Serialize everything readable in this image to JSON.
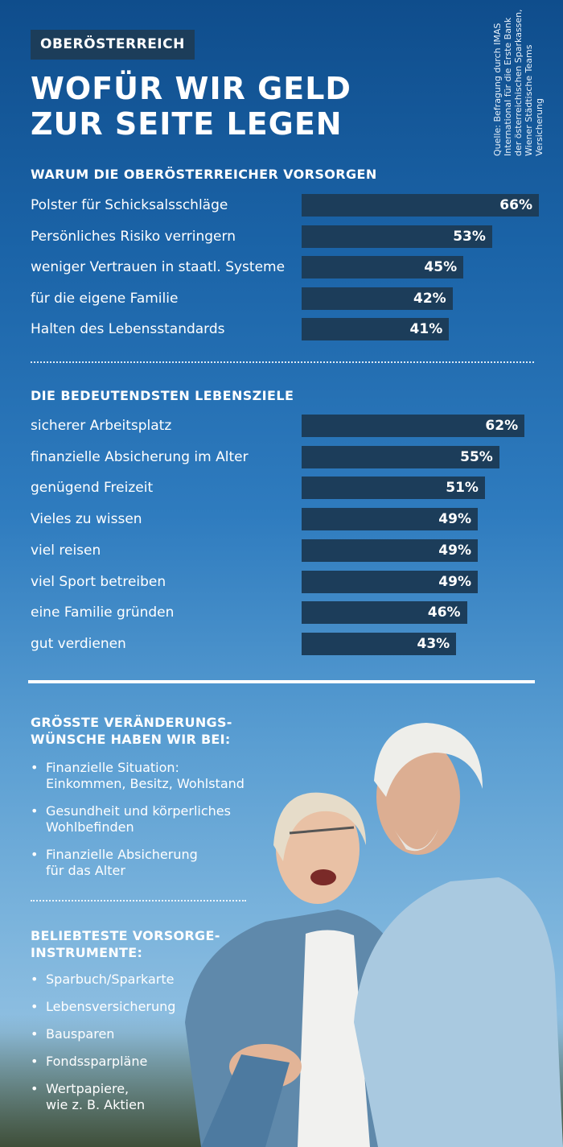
{
  "tag": "OBERÖSTERREICH",
  "headline": [
    "WOFÜR WIR GELD",
    "ZUR SEITE LEGEN"
  ],
  "source_lines": [
    "Quelle: Befragung durch IMAS",
    "International für die Erste Bank",
    "der österreichischen Sparkassen,",
    "Wiener Städtische Teams",
    "Versicherung"
  ],
  "chart_data": [
    {
      "type": "bar",
      "title": "WARUM DIE OBERÖSTERREICHER VORSORGEN",
      "categories": [
        "Polster für Schicksalsschläge",
        "Persönliches Risiko verringern",
        "weniger Vertrauen in staatl. Systeme",
        "für die eigene Familie",
        "Halten des Lebensstandards"
      ],
      "values": [
        66,
        53,
        45,
        42,
        41
      ],
      "labels": [
        "66%",
        "53%",
        "45%",
        "42%",
        "41%"
      ]
    },
    {
      "type": "bar",
      "title": "DIE BEDEUTENDSTEN LEBENSZIELE",
      "categories": [
        "sicherer Arbeitsplatz",
        "finanzielle Absicherung im Alter",
        "genügend Freizeit",
        "Vieles zu wissen",
        "viel reisen",
        "viel Sport betreiben",
        "eine Familie gründen",
        "gut verdienen"
      ],
      "values": [
        62,
        55,
        51,
        49,
        49,
        49,
        46,
        43
      ],
      "labels": [
        "62%",
        "55%",
        "51%",
        "49%",
        "49%",
        "49%",
        "46%",
        "43%"
      ]
    }
  ],
  "changes": {
    "title": [
      "GRÖSSTE VERÄNDERUNGS-",
      "WÜNSCHE HABEN WIR BEI:"
    ],
    "items": [
      [
        "Finanzielle Situation:",
        "Einkommen, Besitz, Wohlstand"
      ],
      [
        "Gesundheit und körperliches",
        "Wohlbefinden"
      ],
      [
        "Finanzielle Absicherung",
        "für das Alter"
      ]
    ]
  },
  "instruments": {
    "title": [
      "BELIEBTESTE VORSORGE-",
      "INSTRUMENTE:"
    ],
    "items": [
      [
        "Sparbuch/Sparkarte"
      ],
      [
        "Lebensversicherung"
      ],
      [
        "Bausparen"
      ],
      [
        "Fondssparpläne"
      ],
      [
        "Wertpapiere,",
        "wie z. B. Aktien"
      ]
    ]
  },
  "bullet_char": "•",
  "colors": {
    "bar": "#1c3d5a",
    "text": "#ffffff"
  }
}
